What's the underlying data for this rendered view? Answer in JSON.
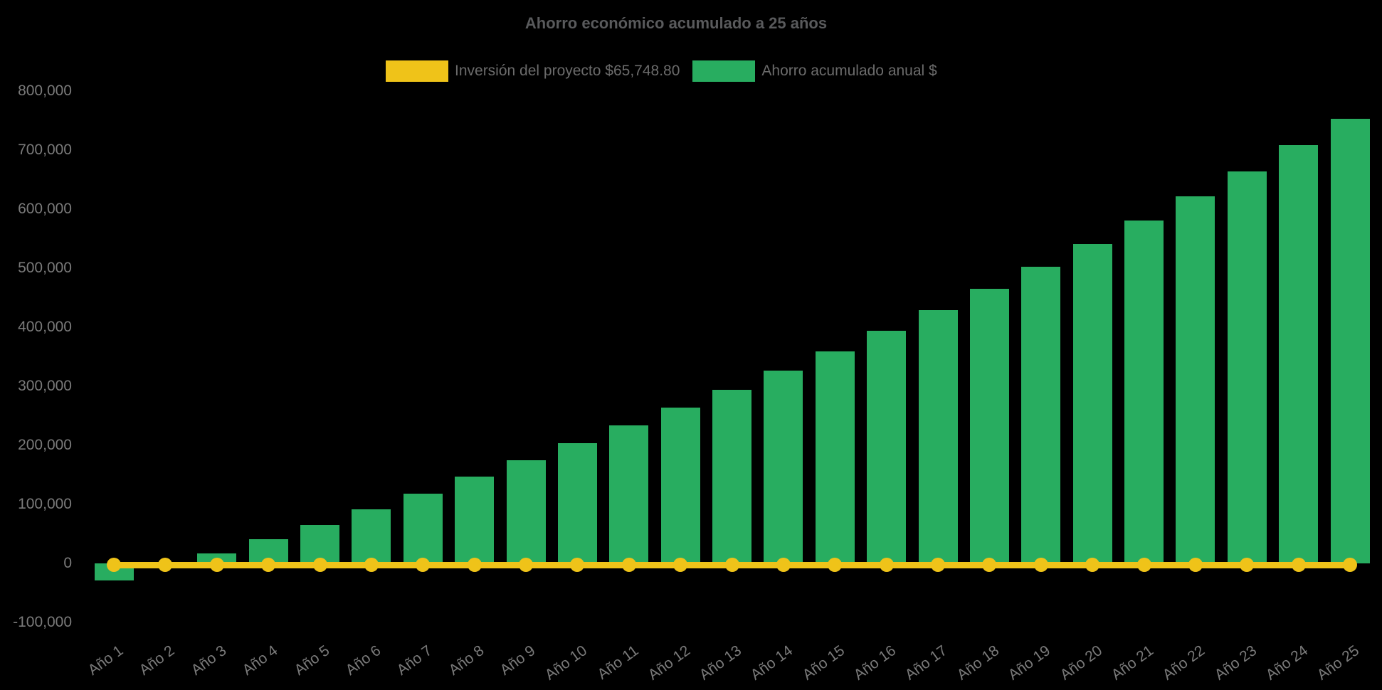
{
  "page": {
    "background": "#000000"
  },
  "title": {
    "text": "Ahorro económico acumulado a 25 años",
    "color": "#595A5C"
  },
  "legend": {
    "position": "top",
    "text_color": "#6B6B6B",
    "items": [
      {
        "label": "Inversión del proyecto $65,748.80",
        "color": "#EFC319"
      },
      {
        "label": "Ahorro acumulado anual $",
        "color": "#28AD60"
      }
    ]
  },
  "chart_data": {
    "type": "bar",
    "title": "Ahorro económico acumulado a 25 años",
    "categories": [
      "Año 1",
      "Año 2",
      "Año 3",
      "Año 4",
      "Año 5",
      "Año 6",
      "Año 7",
      "Año 8",
      "Año 9",
      "Año 10",
      "Año 11",
      "Año 12",
      "Año 13",
      "Año 14",
      "Año 15",
      "Año 16",
      "Año 17",
      "Año 18",
      "Año 19",
      "Año 20",
      "Año 21",
      "Año 22",
      "Año 23",
      "Año 24",
      "Año 25"
    ],
    "series": [
      {
        "name": "Inversión del proyecto $65,748.80",
        "type": "line",
        "color": "#EFC319",
        "constant_value": 65748.8,
        "rendered_at_value": 0,
        "point_style": "circle"
      },
      {
        "name": "Ahorro acumulado anual $",
        "type": "bar",
        "color": "#28AD60",
        "values": [
          -29000,
          -6000,
          17000,
          41000,
          65500,
          91500,
          118500,
          146500,
          175000,
          204000,
          233500,
          263500,
          294500,
          326500,
          359500,
          393500,
          428500,
          464500,
          502000,
          540500,
          580500,
          621500,
          664000,
          708000,
          753500
        ]
      }
    ],
    "y_axis": {
      "min": -100000,
      "max": 800000,
      "tick_step": 100000,
      "ticks": [
        {
          "value": 800000,
          "label": "800,000"
        },
        {
          "value": 700000,
          "label": "700,000"
        },
        {
          "value": 600000,
          "label": "600,000"
        },
        {
          "value": 500000,
          "label": "500,000"
        },
        {
          "value": 400000,
          "label": "400,000"
        },
        {
          "value": 300000,
          "label": "300,000"
        },
        {
          "value": 200000,
          "label": "200,000"
        },
        {
          "value": 100000,
          "label": "100,000"
        },
        {
          "value": 0,
          "label": "0"
        },
        {
          "value": -100000,
          "label": "-100,000"
        }
      ],
      "text_color": "#7A7A7A"
    },
    "x_axis": {
      "label_rotation_deg": -36,
      "text_color": "#7A7A7A"
    },
    "grid": false,
    "axis_lines": false,
    "legend_position": "top",
    "background": "#000000"
  }
}
